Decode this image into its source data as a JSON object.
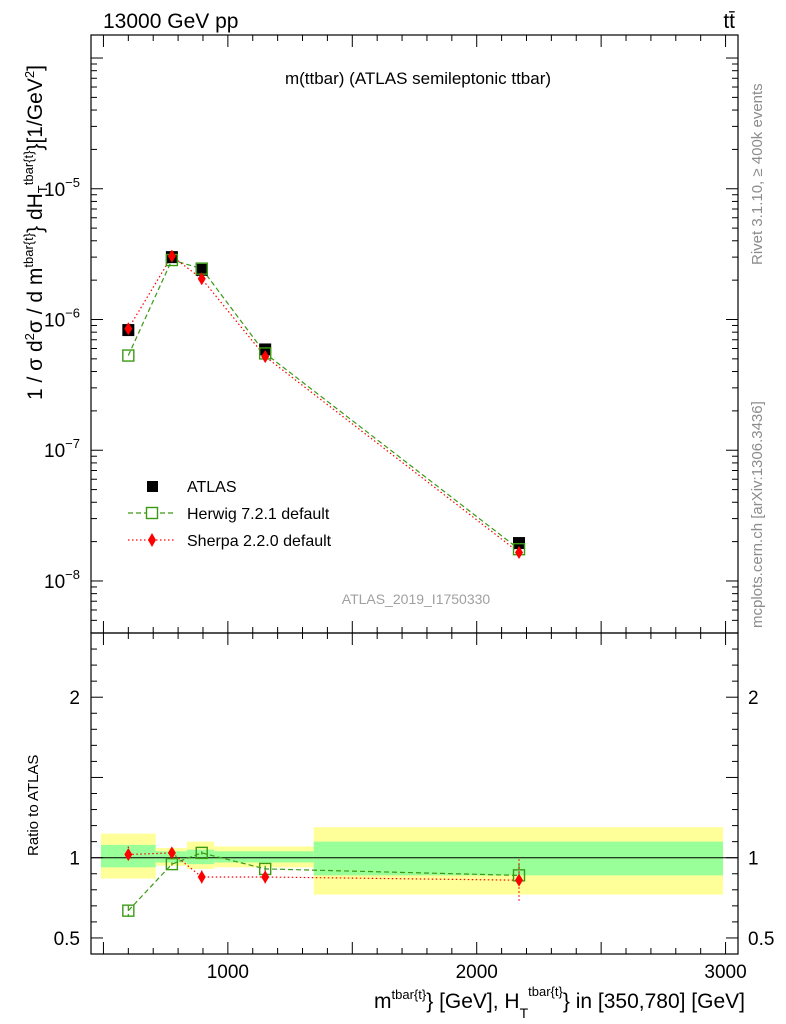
{
  "header": {
    "left": "13000 GeV pp",
    "right": "tt̄"
  },
  "side_labels": {
    "rivet": "Rivet 3.1.10, ≥ 400k events",
    "mcplots": "mcplots.cern.ch [arXiv:1306.3436]"
  },
  "chart_data": [
    {
      "type": "scatter",
      "title": "m(ttbar) (ATLAS semileptonic ttbar)",
      "watermark": "ATLAS_2019_I1750330",
      "ylabel_parts": {
        "pre": "1 / σ d",
        "sq": "2",
        "mid": "σ / d m",
        "sup1": "tbar{t}",
        "mid2": "} dH",
        "sub2": "T",
        "sup2": "tbar{t}",
        "post": "}[1/GeV",
        "sq2": "2",
        "end": "]"
      },
      "yscale": "log",
      "xlim": [
        450,
        3050
      ],
      "ylim": [
        4e-09,
        0.00015
      ],
      "yticks": [
        {
          "value": 1e-08,
          "base": "10",
          "exp": "−8"
        },
        {
          "value": 1e-07,
          "base": "10",
          "exp": "−7"
        },
        {
          "value": 1e-06,
          "base": "10",
          "exp": "−6"
        },
        {
          "value": 1e-05,
          "base": "10",
          "exp": "−5"
        }
      ],
      "legend_position": "lower-left",
      "series": [
        {
          "name": "ATLAS",
          "color": "#000000",
          "marker": "square",
          "x": [
            600,
            775,
            895,
            1150,
            2170
          ],
          "y": [
            8.3e-07,
            3e-06,
            2.4e-06,
            5.9e-07,
            1.95e-08
          ]
        },
        {
          "name": "Herwig 7.2.1 default",
          "color": "#3a9a14",
          "marker": "open-square",
          "line": "dashed",
          "x": [
            600,
            775,
            895,
            1150,
            2170
          ],
          "y": [
            5.3e-07,
            2.85e-06,
            2.45e-06,
            5.5e-07,
            1.75e-08
          ]
        },
        {
          "name": "Sherpa 2.2.0 default",
          "color": "#ff0000",
          "marker": "diamond",
          "line": "dotted",
          "x": [
            600,
            775,
            895,
            1150,
            2170
          ],
          "y": [
            8.5e-07,
            3.05e-06,
            2.05e-06,
            5.2e-07,
            1.65e-08
          ]
        }
      ]
    },
    {
      "type": "scatter",
      "ylabel": "Ratio to ATLAS",
      "xlabel_parts": {
        "pre": "m",
        "sup1": "tbar{t}",
        "mid": "} [GeV], H",
        "sub": "T",
        "sup2": "tbar{t}",
        "post": "} in [350,780] [GeV]"
      },
      "xlim": [
        450,
        3050
      ],
      "ylim": [
        0.4,
        2.4
      ],
      "xticks": [
        {
          "value": 1000,
          "label": "1000"
        },
        {
          "value": 2000,
          "label": "2000"
        },
        {
          "value": 3000,
          "label": "3000"
        }
      ],
      "yticks": [
        {
          "value": 0.5,
          "label": "0.5"
        },
        {
          "value": 1,
          "label": "1"
        },
        {
          "value": 2,
          "label": "2"
        }
      ],
      "bands": [
        {
          "x0": 490,
          "x1": 710,
          "inner": [
            0.94,
            1.08
          ],
          "outer": [
            0.87,
            1.15
          ]
        },
        {
          "x0": 710,
          "x1": 835,
          "inner": [
            0.97,
            1.04
          ],
          "outer": [
            0.95,
            1.06
          ]
        },
        {
          "x0": 835,
          "x1": 945,
          "inner": [
            0.96,
            1.05
          ],
          "outer": [
            0.93,
            1.1
          ]
        },
        {
          "x0": 945,
          "x1": 1345,
          "inner": [
            0.97,
            1.04
          ],
          "outer": [
            0.94,
            1.07
          ]
        },
        {
          "x0": 1345,
          "x1": 2990,
          "inner": [
            0.89,
            1.1
          ],
          "outer": [
            0.77,
            1.19
          ]
        }
      ],
      "series": [
        {
          "name": "Herwig 7.2.1 default",
          "color": "#3a9a14",
          "marker": "open-square",
          "line": "dashed",
          "x": [
            600,
            775,
            895,
            1150,
            2170
          ],
          "y": [
            0.67,
            0.96,
            1.03,
            0.93,
            0.89
          ],
          "err": [
            0.03,
            0.01,
            0.01,
            0.02,
            0.07
          ]
        },
        {
          "name": "Sherpa 2.2.0 default",
          "color": "#ff0000",
          "marker": "diamond",
          "line": "dotted",
          "x": [
            600,
            775,
            895,
            1150,
            2170
          ],
          "y": [
            1.02,
            1.03,
            0.88,
            0.88,
            0.86
          ],
          "err": [
            0.05,
            0.02,
            0.04,
            0.04,
            0.13
          ]
        }
      ]
    }
  ]
}
